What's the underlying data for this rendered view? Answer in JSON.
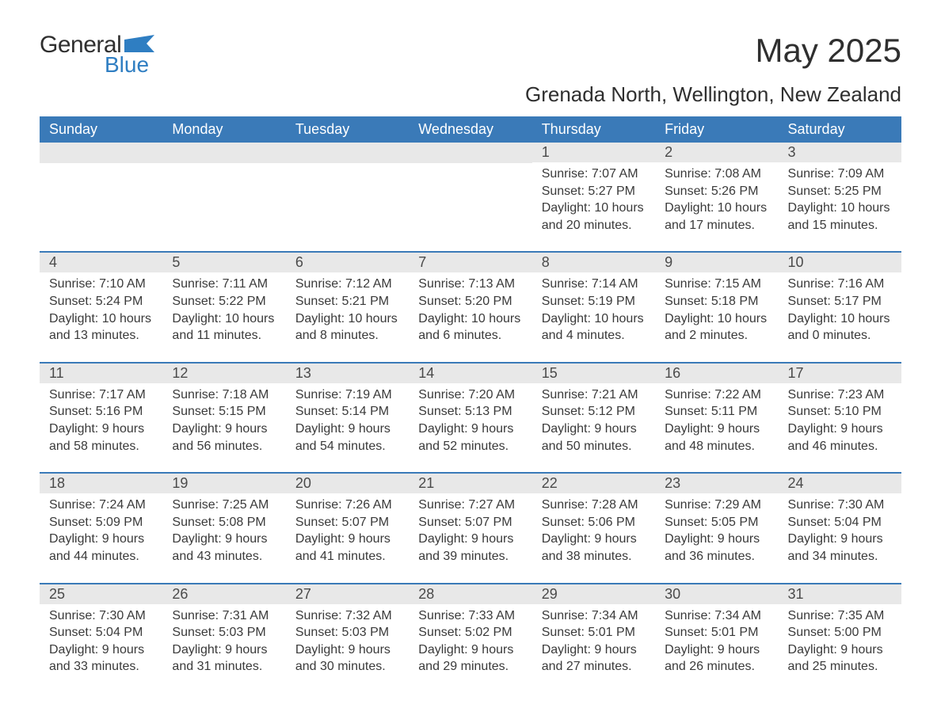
{
  "logo": {
    "text1": "General",
    "text2": "Blue",
    "flag_color": "#2f7ec2"
  },
  "title": "May 2025",
  "location": "Grenada North, Wellington, New Zealand",
  "colors": {
    "header_bg": "#3a7ab8",
    "header_text": "#ffffff",
    "daynum_bg": "#e8e8e8",
    "rule": "#3a7ab8",
    "text": "#3a3a3a"
  },
  "weekdays": [
    "Sunday",
    "Monday",
    "Tuesday",
    "Wednesday",
    "Thursday",
    "Friday",
    "Saturday"
  ],
  "labels": {
    "sunrise": "Sunrise: ",
    "sunset": "Sunset: ",
    "daylight": "Daylight: "
  },
  "weeks": [
    [
      null,
      null,
      null,
      null,
      {
        "d": "1",
        "sr": "7:07 AM",
        "ss": "5:27 PM",
        "dl": "10 hours and 20 minutes."
      },
      {
        "d": "2",
        "sr": "7:08 AM",
        "ss": "5:26 PM",
        "dl": "10 hours and 17 minutes."
      },
      {
        "d": "3",
        "sr": "7:09 AM",
        "ss": "5:25 PM",
        "dl": "10 hours and 15 minutes."
      }
    ],
    [
      {
        "d": "4",
        "sr": "7:10 AM",
        "ss": "5:24 PM",
        "dl": "10 hours and 13 minutes."
      },
      {
        "d": "5",
        "sr": "7:11 AM",
        "ss": "5:22 PM",
        "dl": "10 hours and 11 minutes."
      },
      {
        "d": "6",
        "sr": "7:12 AM",
        "ss": "5:21 PM",
        "dl": "10 hours and 8 minutes."
      },
      {
        "d": "7",
        "sr": "7:13 AM",
        "ss": "5:20 PM",
        "dl": "10 hours and 6 minutes."
      },
      {
        "d": "8",
        "sr": "7:14 AM",
        "ss": "5:19 PM",
        "dl": "10 hours and 4 minutes."
      },
      {
        "d": "9",
        "sr": "7:15 AM",
        "ss": "5:18 PM",
        "dl": "10 hours and 2 minutes."
      },
      {
        "d": "10",
        "sr": "7:16 AM",
        "ss": "5:17 PM",
        "dl": "10 hours and 0 minutes."
      }
    ],
    [
      {
        "d": "11",
        "sr": "7:17 AM",
        "ss": "5:16 PM",
        "dl": "9 hours and 58 minutes."
      },
      {
        "d": "12",
        "sr": "7:18 AM",
        "ss": "5:15 PM",
        "dl": "9 hours and 56 minutes."
      },
      {
        "d": "13",
        "sr": "7:19 AM",
        "ss": "5:14 PM",
        "dl": "9 hours and 54 minutes."
      },
      {
        "d": "14",
        "sr": "7:20 AM",
        "ss": "5:13 PM",
        "dl": "9 hours and 52 minutes."
      },
      {
        "d": "15",
        "sr": "7:21 AM",
        "ss": "5:12 PM",
        "dl": "9 hours and 50 minutes."
      },
      {
        "d": "16",
        "sr": "7:22 AM",
        "ss": "5:11 PM",
        "dl": "9 hours and 48 minutes."
      },
      {
        "d": "17",
        "sr": "7:23 AM",
        "ss": "5:10 PM",
        "dl": "9 hours and 46 minutes."
      }
    ],
    [
      {
        "d": "18",
        "sr": "7:24 AM",
        "ss": "5:09 PM",
        "dl": "9 hours and 44 minutes."
      },
      {
        "d": "19",
        "sr": "7:25 AM",
        "ss": "5:08 PM",
        "dl": "9 hours and 43 minutes."
      },
      {
        "d": "20",
        "sr": "7:26 AM",
        "ss": "5:07 PM",
        "dl": "9 hours and 41 minutes."
      },
      {
        "d": "21",
        "sr": "7:27 AM",
        "ss": "5:07 PM",
        "dl": "9 hours and 39 minutes."
      },
      {
        "d": "22",
        "sr": "7:28 AM",
        "ss": "5:06 PM",
        "dl": "9 hours and 38 minutes."
      },
      {
        "d": "23",
        "sr": "7:29 AM",
        "ss": "5:05 PM",
        "dl": "9 hours and 36 minutes."
      },
      {
        "d": "24",
        "sr": "7:30 AM",
        "ss": "5:04 PM",
        "dl": "9 hours and 34 minutes."
      }
    ],
    [
      {
        "d": "25",
        "sr": "7:30 AM",
        "ss": "5:04 PM",
        "dl": "9 hours and 33 minutes."
      },
      {
        "d": "26",
        "sr": "7:31 AM",
        "ss": "5:03 PM",
        "dl": "9 hours and 31 minutes."
      },
      {
        "d": "27",
        "sr": "7:32 AM",
        "ss": "5:03 PM",
        "dl": "9 hours and 30 minutes."
      },
      {
        "d": "28",
        "sr": "7:33 AM",
        "ss": "5:02 PM",
        "dl": "9 hours and 29 minutes."
      },
      {
        "d": "29",
        "sr": "7:34 AM",
        "ss": "5:01 PM",
        "dl": "9 hours and 27 minutes."
      },
      {
        "d": "30",
        "sr": "7:34 AM",
        "ss": "5:01 PM",
        "dl": "9 hours and 26 minutes."
      },
      {
        "d": "31",
        "sr": "7:35 AM",
        "ss": "5:00 PM",
        "dl": "9 hours and 25 minutes."
      }
    ]
  ]
}
